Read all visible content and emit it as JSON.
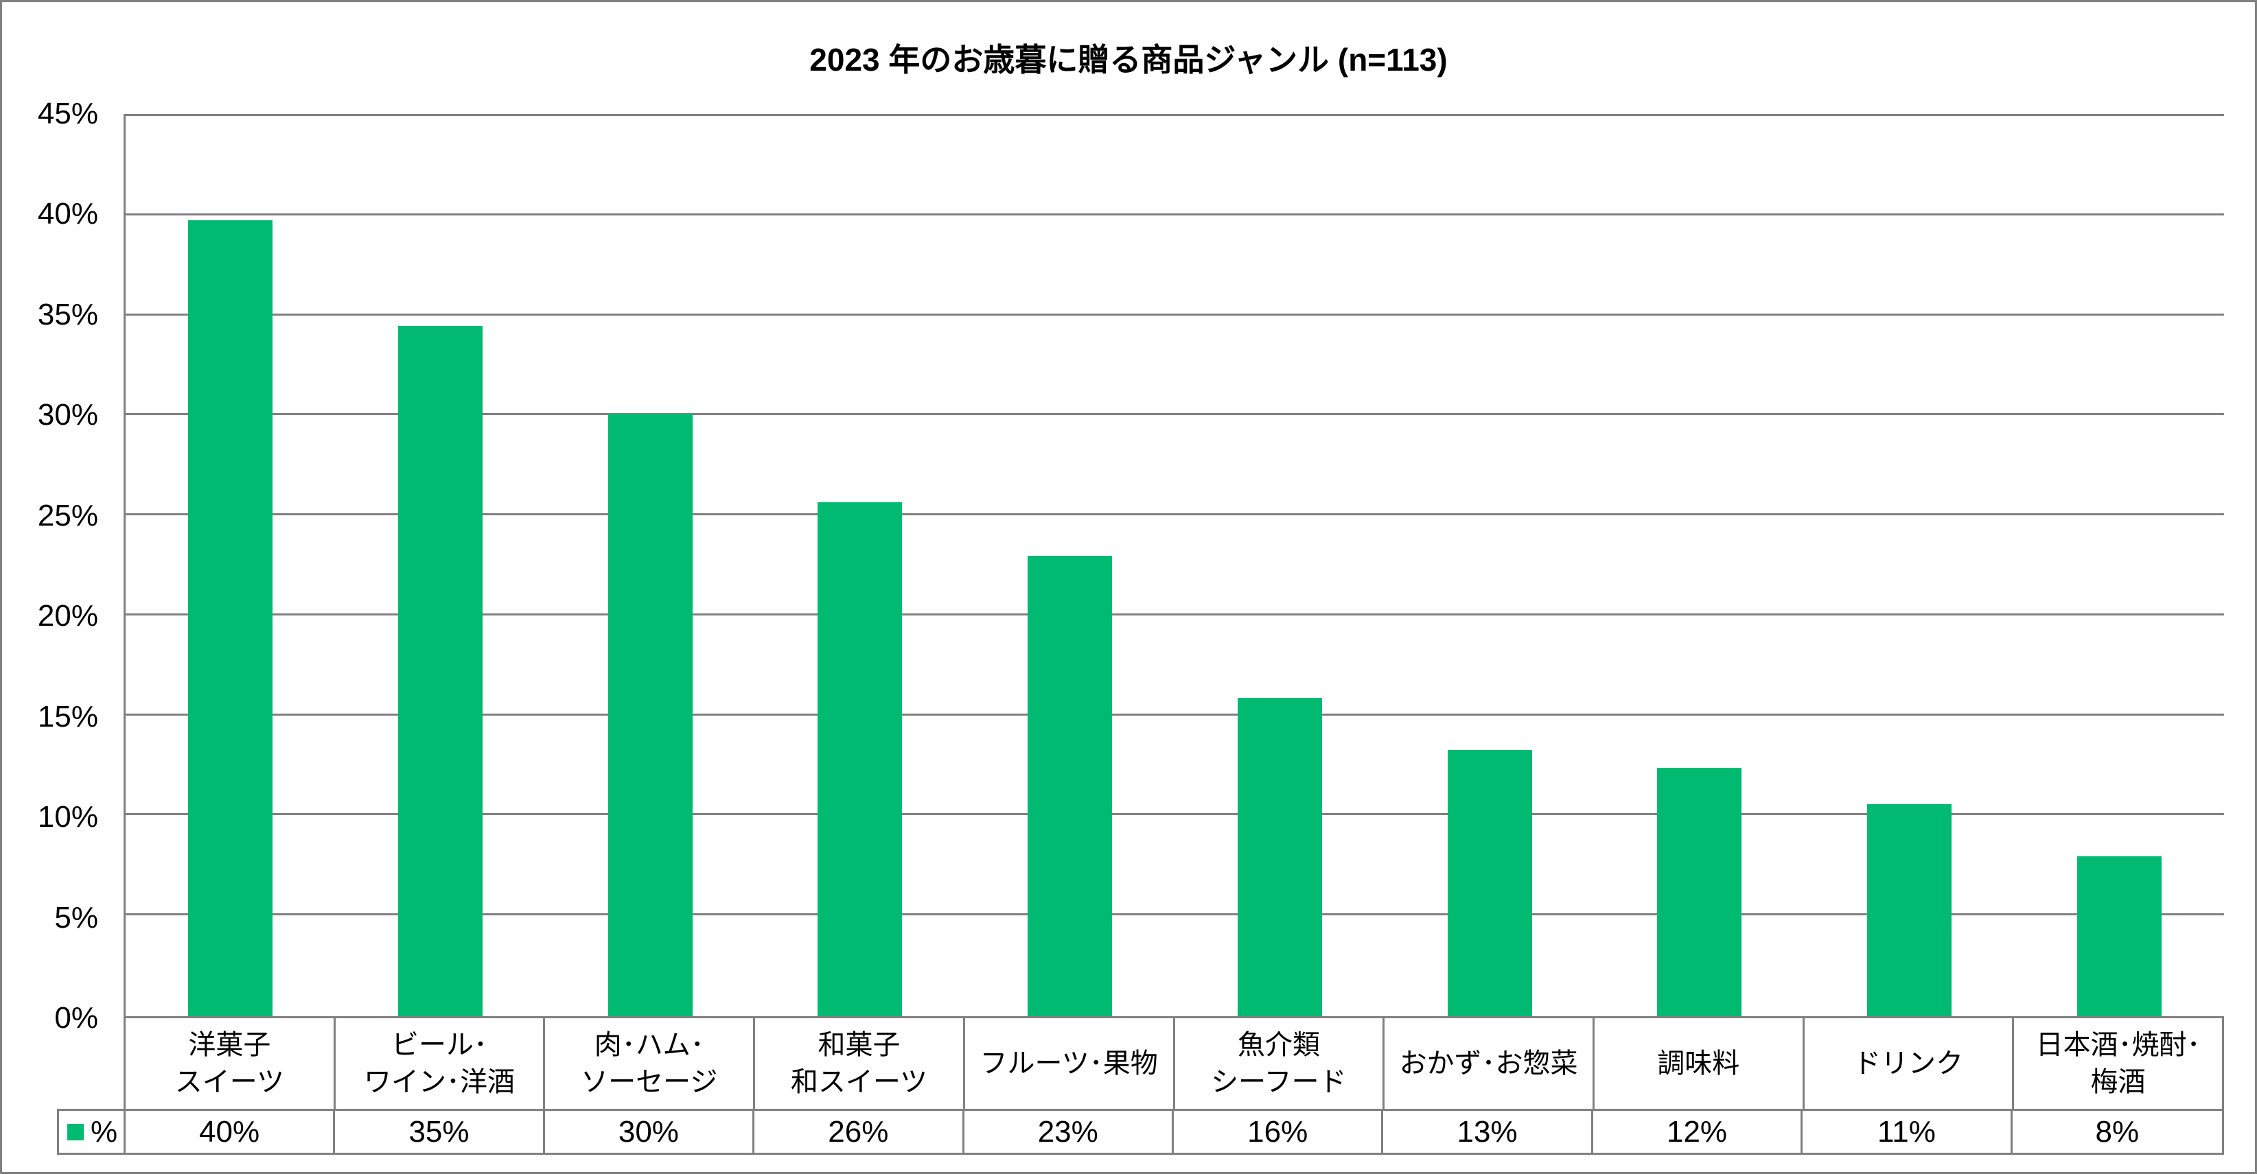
{
  "title": "2023 年のお歳暮に贈る商品ジャンル (n=113)",
  "legend": {
    "label": "%"
  },
  "colors": {
    "bar": "#00BA71",
    "grid": "#808080",
    "text": "#000000",
    "background": "#FFFFFF"
  },
  "y_axis": {
    "tick_labels": [
      "45%",
      "40%",
      "35%",
      "30%",
      "25%",
      "20%",
      "15%",
      "10%",
      "5%",
      "0%"
    ],
    "max": 45,
    "step": 5
  },
  "chart_data": {
    "type": "bar",
    "title": "2023 年のお歳暮に贈る商品ジャンル (n=113)",
    "categories": [
      "洋菓子スイーツ",
      "ビール･ワイン･洋酒",
      "肉･ハム･ソーセージ",
      "和菓子和スイーツ",
      "フルーツ･果物",
      "魚介類シーフード",
      "おかず･お惣菜",
      "調味料",
      "ドリンク",
      "日本酒･焼酎･梅酒"
    ],
    "category_label_lines": [
      [
        "洋菓子",
        "スイーツ"
      ],
      [
        "ビール･",
        "ワイン･洋酒"
      ],
      [
        "肉･ハム･",
        "ソーセージ"
      ],
      [
        "和菓子",
        "和スイーツ"
      ],
      [
        "フルーツ･果物"
      ],
      [
        "魚介類",
        "シーフード"
      ],
      [
        "おかず･お惣菜"
      ],
      [
        "調味料"
      ],
      [
        "ドリンク"
      ],
      [
        "日本酒･焼酎･",
        "梅酒"
      ]
    ],
    "values": [
      39.8,
      34.5,
      30.1,
      25.7,
      23.0,
      15.9,
      13.3,
      12.4,
      10.6,
      8.0
    ],
    "table_values": [
      "40%",
      "35%",
      "30%",
      "26%",
      "23%",
      "16%",
      "13%",
      "12%",
      "11%",
      "8%"
    ],
    "series_label": "%",
    "xlabel": "",
    "ylabel": "",
    "ylim": [
      0,
      45
    ],
    "y_tick_step": 5,
    "grid": true,
    "legend_position": "bottom-left-table-cell",
    "bar_color": "#00BA71"
  }
}
